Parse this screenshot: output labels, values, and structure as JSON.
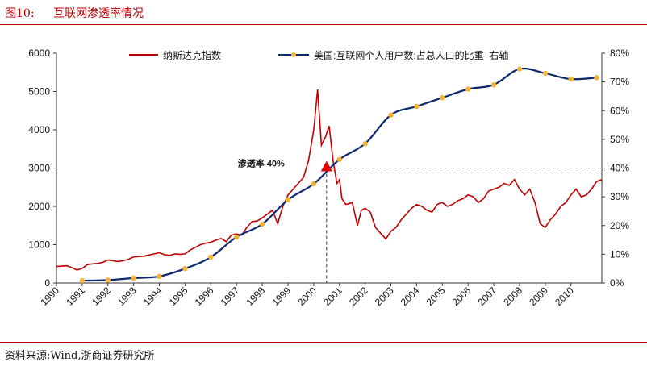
{
  "header": {
    "figure_number": "图10:",
    "title": "互联网渗透率情况"
  },
  "source": "资料来源:Wind,浙商证券研究所",
  "chart_data": {
    "type": "line",
    "x_tick_labels": [
      "1990",
      "1991",
      "1992",
      "1993",
      "1994",
      "1995",
      "1996",
      "1997",
      "1998",
      "1999",
      "2000",
      "2001",
      "2002",
      "2003",
      "2004",
      "2005",
      "2006",
      "2007",
      "2008",
      "2009",
      "2010"
    ],
    "y_left": {
      "ticks": [
        0,
        1000,
        2000,
        3000,
        4000,
        5000,
        6000
      ],
      "range": [
        0,
        6000
      ]
    },
    "y_right": {
      "ticks": [
        "0%",
        "10%",
        "20%",
        "30%",
        "40%",
        "50%",
        "60%",
        "70%",
        "80%"
      ],
      "range": [
        0,
        80
      ]
    },
    "legend_position": "top",
    "series": [
      {
        "name": "纳斯达克指数",
        "axis": "left",
        "color": "#c00000",
        "points": [
          [
            1990.0,
            430
          ],
          [
            1990.2,
            440
          ],
          [
            1990.4,
            450
          ],
          [
            1990.6,
            400
          ],
          [
            1990.8,
            340
          ],
          [
            1991.0,
            380
          ],
          [
            1991.2,
            480
          ],
          [
            1991.4,
            500
          ],
          [
            1991.6,
            510
          ],
          [
            1991.8,
            540
          ],
          [
            1992.0,
            600
          ],
          [
            1992.2,
            580
          ],
          [
            1992.4,
            560
          ],
          [
            1992.6,
            580
          ],
          [
            1992.8,
            620
          ],
          [
            1993.0,
            680
          ],
          [
            1993.2,
            690
          ],
          [
            1993.4,
            700
          ],
          [
            1993.6,
            730
          ],
          [
            1993.8,
            760
          ],
          [
            1994.0,
            790
          ],
          [
            1994.2,
            740
          ],
          [
            1994.4,
            720
          ],
          [
            1994.6,
            760
          ],
          [
            1994.8,
            750
          ],
          [
            1995.0,
            760
          ],
          [
            1995.2,
            860
          ],
          [
            1995.4,
            930
          ],
          [
            1995.6,
            1000
          ],
          [
            1995.8,
            1040
          ],
          [
            1996.0,
            1060
          ],
          [
            1996.2,
            1120
          ],
          [
            1996.4,
            1160
          ],
          [
            1996.6,
            1080
          ],
          [
            1996.8,
            1250
          ],
          [
            1997.0,
            1280
          ],
          [
            1997.2,
            1250
          ],
          [
            1997.4,
            1450
          ],
          [
            1997.6,
            1600
          ],
          [
            1997.8,
            1620
          ],
          [
            1998.0,
            1700
          ],
          [
            1998.2,
            1800
          ],
          [
            1998.4,
            1900
          ],
          [
            1998.6,
            1550
          ],
          [
            1998.8,
            2000
          ],
          [
            1999.0,
            2300
          ],
          [
            1999.2,
            2450
          ],
          [
            1999.4,
            2600
          ],
          [
            1999.6,
            2750
          ],
          [
            1999.8,
            3200
          ],
          [
            2000.0,
            4000
          ],
          [
            2000.15,
            5050
          ],
          [
            2000.3,
            3600
          ],
          [
            2000.45,
            3800
          ],
          [
            2000.6,
            4100
          ],
          [
            2000.75,
            3200
          ],
          [
            2000.9,
            2600
          ],
          [
            2001.0,
            2700
          ],
          [
            2001.1,
            2200
          ],
          [
            2001.25,
            2050
          ],
          [
            2001.5,
            2100
          ],
          [
            2001.7,
            1500
          ],
          [
            2001.85,
            1900
          ],
          [
            2002.0,
            1950
          ],
          [
            2002.2,
            1850
          ],
          [
            2002.4,
            1450
          ],
          [
            2002.6,
            1300
          ],
          [
            2002.8,
            1150
          ],
          [
            2003.0,
            1350
          ],
          [
            2003.2,
            1450
          ],
          [
            2003.4,
            1650
          ],
          [
            2003.6,
            1800
          ],
          [
            2003.8,
            1950
          ],
          [
            2004.0,
            2050
          ],
          [
            2004.2,
            2000
          ],
          [
            2004.4,
            1900
          ],
          [
            2004.6,
            1850
          ],
          [
            2004.8,
            2050
          ],
          [
            2005.0,
            2100
          ],
          [
            2005.2,
            2000
          ],
          [
            2005.4,
            2050
          ],
          [
            2005.6,
            2150
          ],
          [
            2005.8,
            2200
          ],
          [
            2006.0,
            2300
          ],
          [
            2006.2,
            2250
          ],
          [
            2006.4,
            2100
          ],
          [
            2006.6,
            2200
          ],
          [
            2006.8,
            2400
          ],
          [
            2007.0,
            2450
          ],
          [
            2007.2,
            2500
          ],
          [
            2007.4,
            2600
          ],
          [
            2007.6,
            2550
          ],
          [
            2007.8,
            2700
          ],
          [
            2008.0,
            2450
          ],
          [
            2008.2,
            2300
          ],
          [
            2008.4,
            2450
          ],
          [
            2008.6,
            2100
          ],
          [
            2008.8,
            1550
          ],
          [
            2009.0,
            1450
          ],
          [
            2009.2,
            1650
          ],
          [
            2009.4,
            1800
          ],
          [
            2009.6,
            2000
          ],
          [
            2009.8,
            2100
          ],
          [
            2010.0,
            2300
          ],
          [
            2010.2,
            2450
          ],
          [
            2010.4,
            2250
          ],
          [
            2010.6,
            2300
          ],
          [
            2010.8,
            2450
          ],
          [
            2011.0,
            2650
          ],
          [
            2011.2,
            2700
          ]
        ]
      },
      {
        "name": "美国:互联网个人用户数:占总人口的比重  右轴",
        "axis": "right",
        "color": "#0d2a6e",
        "marker_color": "#f5b335",
        "points": [
          [
            1991,
            0.8
          ],
          [
            1992,
            1.0
          ],
          [
            1993,
            1.7
          ],
          [
            1994,
            2.3
          ],
          [
            1995,
            5.0
          ],
          [
            1996,
            9.0
          ],
          [
            1997,
            16.0
          ],
          [
            1998,
            20.5
          ],
          [
            1999,
            29.0
          ],
          [
            2000,
            34.5
          ],
          [
            2001,
            43.0
          ],
          [
            2002,
            48.5
          ],
          [
            2003,
            58.5
          ],
          [
            2004,
            61.5
          ],
          [
            2005,
            64.5
          ],
          [
            2006,
            67.5
          ],
          [
            2007,
            69.0
          ],
          [
            2008,
            74.5
          ],
          [
            2009,
            73.0
          ],
          [
            2010,
            71.0
          ],
          [
            2011,
            71.5
          ]
        ]
      }
    ],
    "annotation": {
      "label": "渗透率 40%",
      "x": 2000.5,
      "y_right": 40
    }
  }
}
